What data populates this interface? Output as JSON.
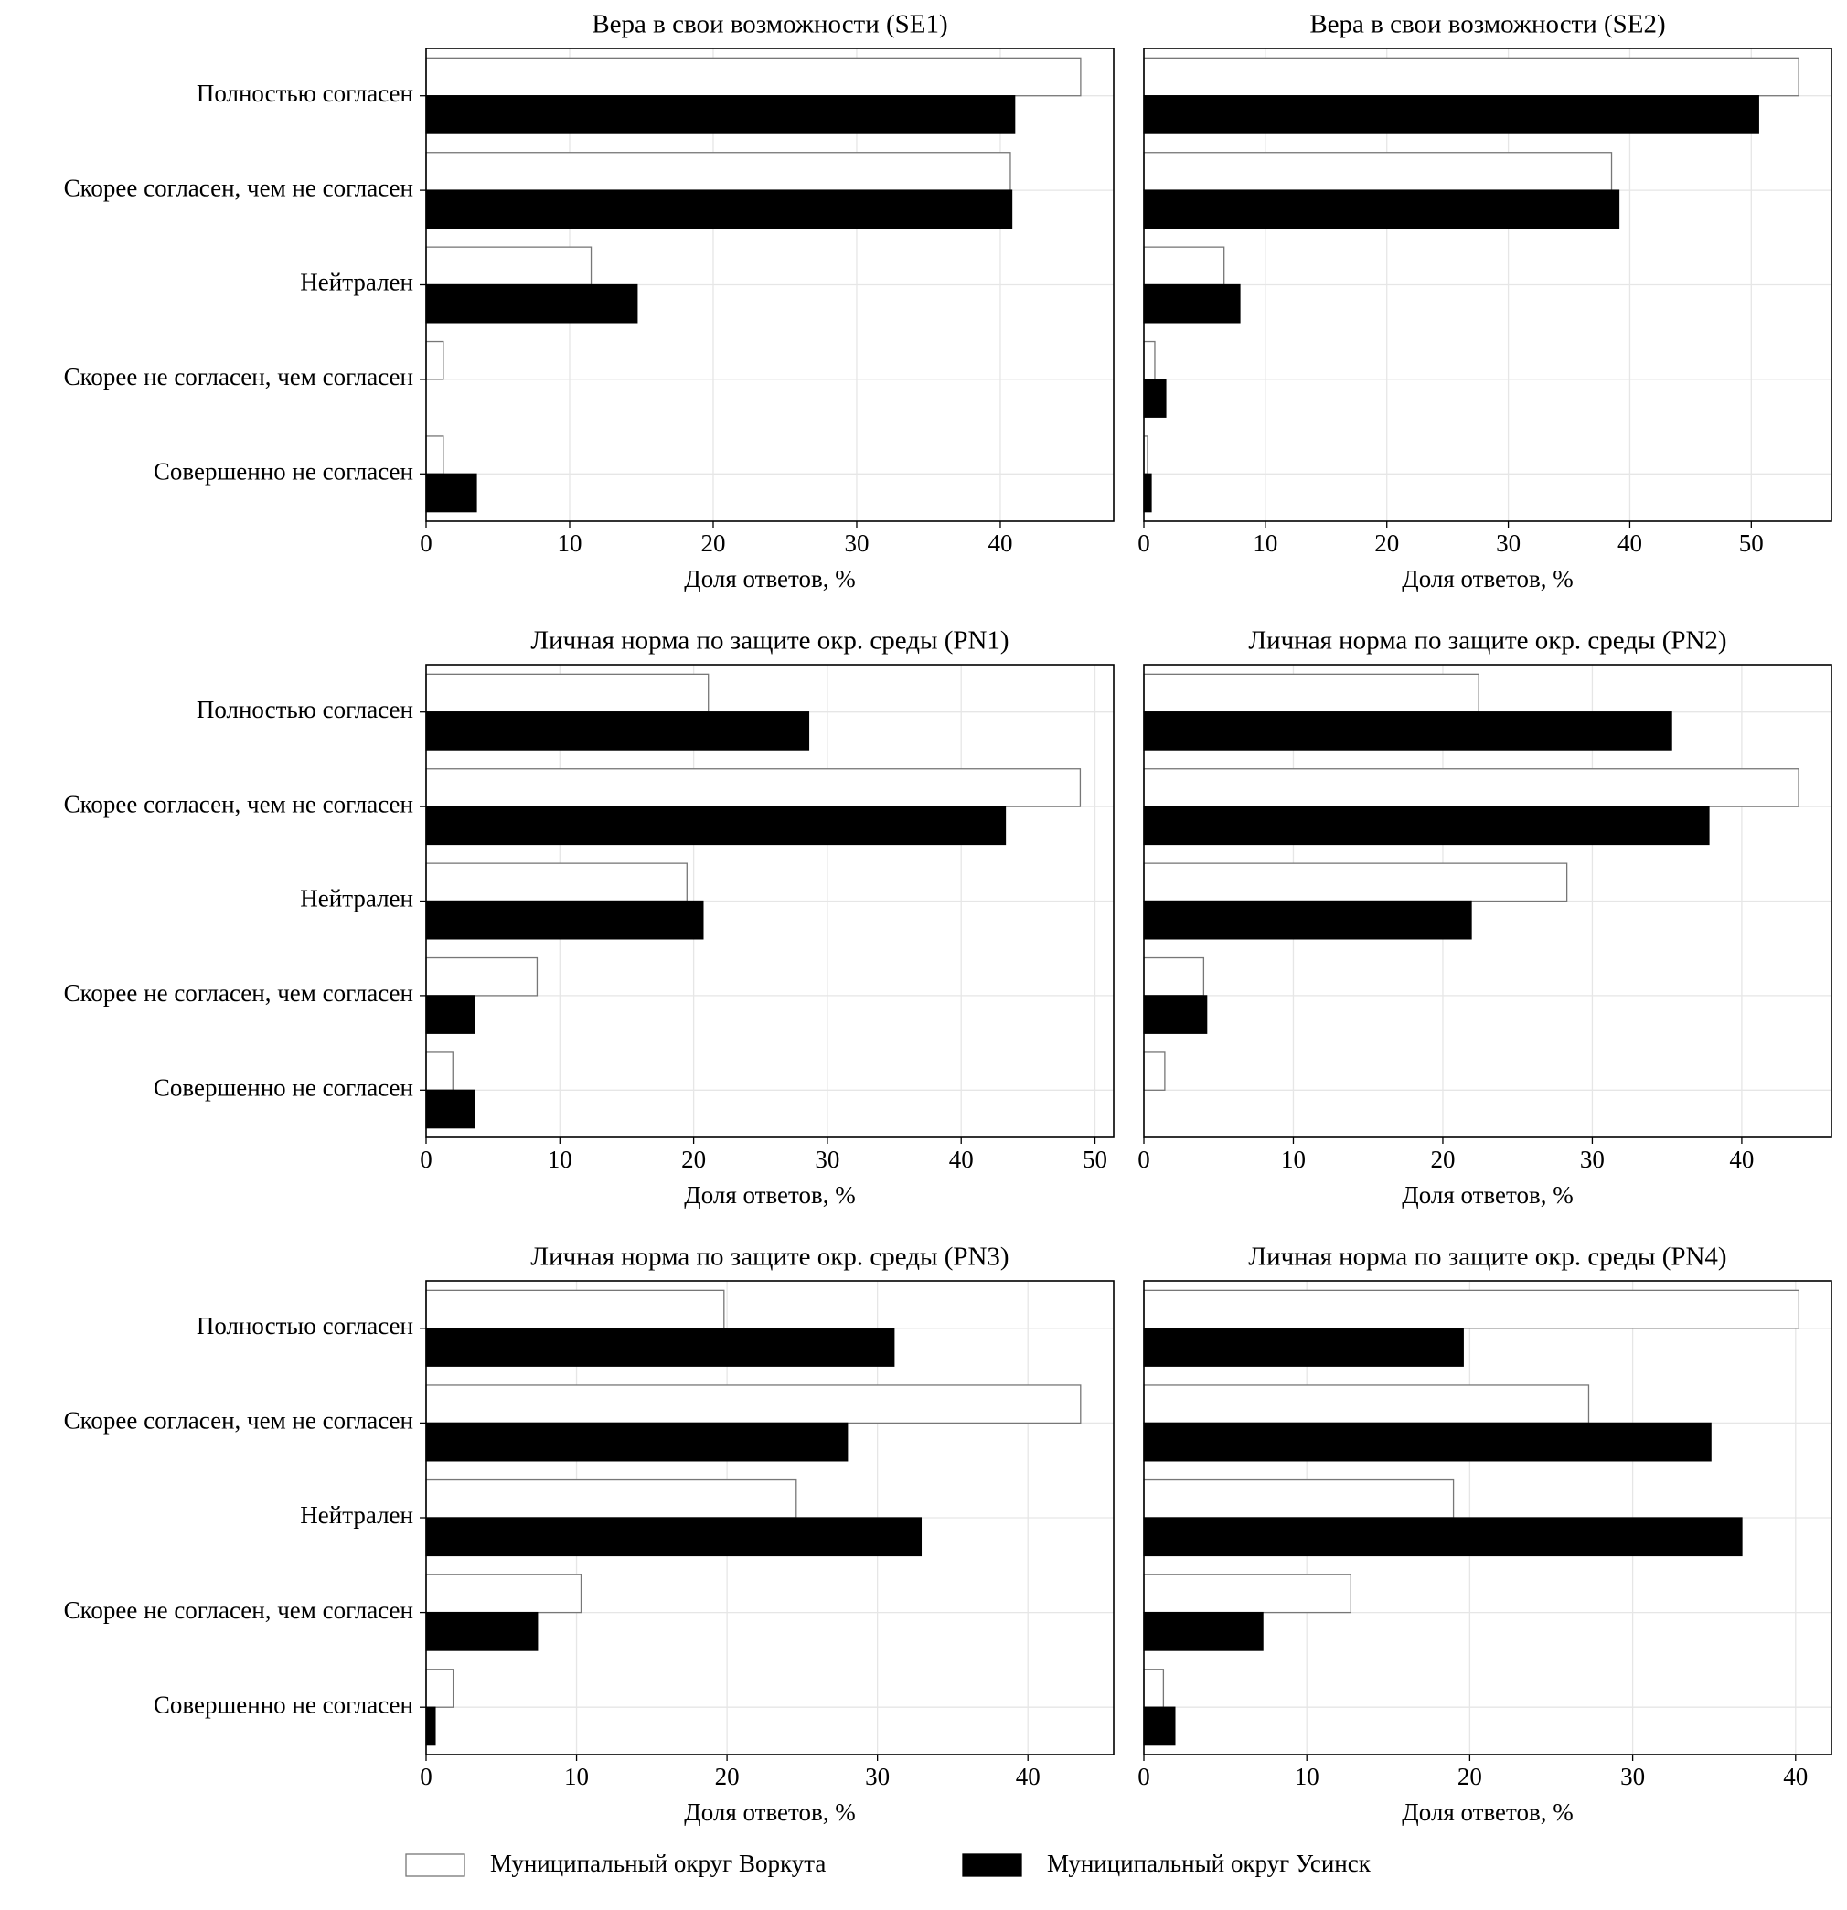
{
  "chart_data": [
    {
      "type": "bar",
      "orientation": "horizontal",
      "title": "Вера в свои возможности (SE1)",
      "categories": [
        "Полностью согласен",
        "Скорее согласен, чем не согласен",
        "Нейтрален",
        "Скорее не согласен, чем согласен",
        "Совершенно не согласен"
      ],
      "series": [
        {
          "color": "#ffffff",
          "values": [
            45.6,
            40.7,
            11.5,
            1.2,
            1.2
          ]
        },
        {
          "color": "#000000",
          "values": [
            41.0,
            40.8,
            14.7,
            0,
            3.5
          ]
        }
      ],
      "xlabel": "Доля ответов, %",
      "xlim": [
        0,
        47.9
      ],
      "xticks": [
        0,
        10,
        20,
        30,
        40
      ],
      "grid": true
    },
    {
      "type": "bar",
      "orientation": "horizontal",
      "title": "Вера в свои возможности (SE2)",
      "categories": [
        "Полностью согласен",
        "Скорее согласен, чем не согласен",
        "Нейтрален",
        "Скорее не согласен, чем согласен",
        "Совершенно не согласен"
      ],
      "series": [
        {
          "color": "#ffffff",
          "values": [
            53.9,
            38.5,
            6.6,
            0.9,
            0.3
          ]
        },
        {
          "color": "#000000",
          "values": [
            50.6,
            39.1,
            7.9,
            1.8,
            0.6
          ]
        }
      ],
      "xlabel": "Доля ответов, %",
      "xlim": [
        0,
        56.6
      ],
      "xticks": [
        0,
        10,
        20,
        30,
        40,
        50
      ],
      "grid": true
    },
    {
      "type": "bar",
      "orientation": "horizontal",
      "title": "Личная норма по защите окр. среды (PN1)",
      "categories": [
        "Полностью согласен",
        "Скорее согласен, чем не согласен",
        "Нейтрален",
        "Скорее не согласен, чем согласен",
        "Совершенно не согласен"
      ],
      "series": [
        {
          "color": "#ffffff",
          "values": [
            21.1,
            48.9,
            19.5,
            8.3,
            2.0
          ]
        },
        {
          "color": "#000000",
          "values": [
            28.6,
            43.3,
            20.7,
            3.6,
            3.6
          ]
        }
      ],
      "xlabel": "Доля ответов, %",
      "xlim": [
        0,
        51.4
      ],
      "xticks": [
        0,
        10,
        20,
        30,
        40,
        50
      ],
      "grid": true
    },
    {
      "type": "bar",
      "orientation": "horizontal",
      "title": "Личная норма по защите окр. среды (PN2)",
      "categories": [
        "Полностью согласен",
        "Скорее согласен, чем не согласен",
        "Нейтрален",
        "Скорее не согласен, чем согласен",
        "Совершенно не согласен"
      ],
      "series": [
        {
          "color": "#ffffff",
          "values": [
            22.4,
            43.8,
            28.3,
            4.0,
            1.4
          ]
        },
        {
          "color": "#000000",
          "values": [
            35.3,
            37.8,
            21.9,
            4.2,
            0
          ]
        }
      ],
      "xlabel": "Доля ответов, %",
      "xlim": [
        0,
        46.0
      ],
      "xticks": [
        0,
        10,
        20,
        30,
        40
      ],
      "grid": true
    },
    {
      "type": "bar",
      "orientation": "horizontal",
      "title": "Личная норма по защите окр. среды (PN3)",
      "categories": [
        "Полностью согласен",
        "Скорее согласен, чем не согласен",
        "Нейтрален",
        "Скорее не согласен, чем согласен",
        "Совершенно не согласен"
      ],
      "series": [
        {
          "color": "#ffffff",
          "values": [
            19.8,
            43.5,
            24.6,
            10.3,
            1.8
          ]
        },
        {
          "color": "#000000",
          "values": [
            31.1,
            28.0,
            32.9,
            7.4,
            0.6
          ]
        }
      ],
      "xlabel": "Доля ответов, %",
      "xlim": [
        0,
        45.7
      ],
      "xticks": [
        0,
        10,
        20,
        30,
        40
      ],
      "grid": true
    },
    {
      "type": "bar",
      "orientation": "horizontal",
      "title": "Личная норма по защите окр. среды (PN4)",
      "categories": [
        "Полностью согласен",
        "Скорее согласен, чем не согласен",
        "Нейтрален",
        "Скорее не согласен, чем согласен",
        "Совершенно не согласен"
      ],
      "series": [
        {
          "color": "#ffffff",
          "values": [
            40.2,
            27.3,
            19.0,
            12.7,
            1.2
          ]
        },
        {
          "color": "#000000",
          "values": [
            19.6,
            34.8,
            36.7,
            7.3,
            1.9
          ]
        }
      ],
      "xlabel": "Доля ответов, %",
      "xlim": [
        0,
        42.2
      ],
      "xticks": [
        0,
        10,
        20,
        30,
        40
      ],
      "grid": true
    }
  ],
  "legend": {
    "entries": [
      {
        "name": "Муниципальный округ Воркута",
        "color": "#ffffff"
      },
      {
        "name": "Муниципальный округ Усинск",
        "color": "#000000"
      }
    ]
  }
}
